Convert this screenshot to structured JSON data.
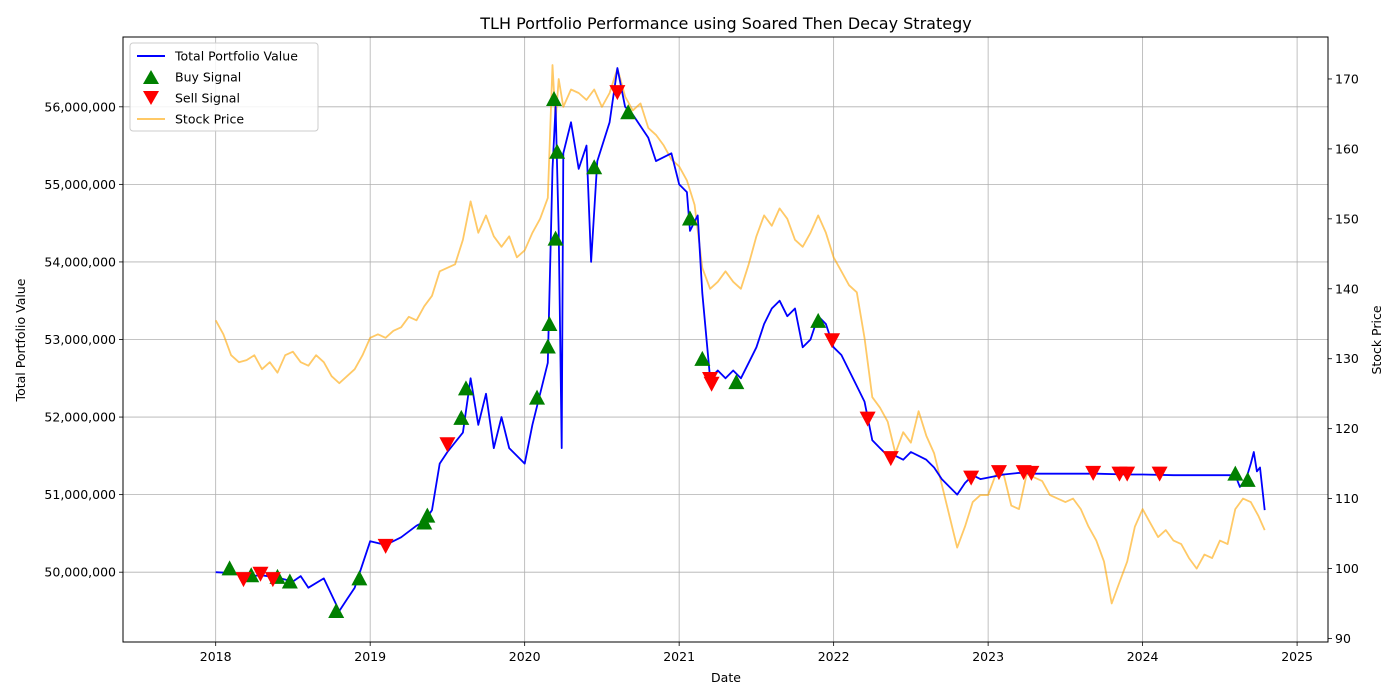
{
  "chart_data": {
    "type": "line",
    "title": "TLH Portfolio Performance using Soared Then Decay Strategy",
    "xlabel": "Date",
    "ylabel": "Total Portfolio Value",
    "y2label": "Stock Price",
    "grid": true,
    "legend_position": "top-left",
    "xlim": [
      2017.4,
      2025.2
    ],
    "ylim": [
      49100000,
      56900000
    ],
    "y2lim": [
      89.5,
      176
    ],
    "x_ticks": [
      "2018",
      "2019",
      "2020",
      "2021",
      "2022",
      "2023",
      "2024",
      "2025"
    ],
    "y_ticks": [
      "50,000,000",
      "51,000,000",
      "52,000,000",
      "53,000,000",
      "54,000,000",
      "55,000,000",
      "56,000,000"
    ],
    "y2_ticks": [
      "90",
      "100",
      "110",
      "120",
      "130",
      "140",
      "150",
      "160",
      "170"
    ],
    "legend": [
      "Total Portfolio Value",
      "Buy Signal",
      "Sell Signal",
      "Stock Price"
    ],
    "colors": {
      "portfolio": "#0000ff",
      "buy": "#008000",
      "sell": "#ff0000",
      "stock": "#ffa500"
    },
    "series": [
      {
        "name": "Total Portfolio Value",
        "axis": "left",
        "points": [
          [
            2018.0,
            50000000
          ],
          [
            2018.1,
            49990000
          ],
          [
            2018.2,
            49950000
          ],
          [
            2018.3,
            49960000
          ],
          [
            2018.4,
            49930000
          ],
          [
            2018.5,
            49880000
          ],
          [
            2018.55,
            49950000
          ],
          [
            2018.6,
            49800000
          ],
          [
            2018.7,
            49920000
          ],
          [
            2018.8,
            49500000
          ],
          [
            2018.85,
            49650000
          ],
          [
            2018.9,
            49800000
          ],
          [
            2019.0,
            50400000
          ],
          [
            2019.1,
            50350000
          ],
          [
            2019.2,
            50450000
          ],
          [
            2019.3,
            50600000
          ],
          [
            2019.35,
            50650000
          ],
          [
            2019.4,
            50800000
          ],
          [
            2019.45,
            51400000
          ],
          [
            2019.5,
            51550000
          ],
          [
            2019.6,
            51800000
          ],
          [
            2019.65,
            52500000
          ],
          [
            2019.7,
            51900000
          ],
          [
            2019.75,
            52300000
          ],
          [
            2019.8,
            51600000
          ],
          [
            2019.85,
            52000000
          ],
          [
            2019.9,
            51600000
          ],
          [
            2020.0,
            51400000
          ],
          [
            2020.05,
            51900000
          ],
          [
            2020.1,
            52300000
          ],
          [
            2020.15,
            52700000
          ],
          [
            2020.18,
            55200000
          ],
          [
            2020.2,
            56000000
          ],
          [
            2020.22,
            54400000
          ],
          [
            2020.24,
            51600000
          ],
          [
            2020.25,
            55400000
          ],
          [
            2020.3,
            55800000
          ],
          [
            2020.35,
            55200000
          ],
          [
            2020.4,
            55500000
          ],
          [
            2020.43,
            54000000
          ],
          [
            2020.47,
            55300000
          ],
          [
            2020.55,
            55800000
          ],
          [
            2020.6,
            56500000
          ],
          [
            2020.65,
            56000000
          ],
          [
            2020.7,
            55900000
          ],
          [
            2020.8,
            55600000
          ],
          [
            2020.85,
            55300000
          ],
          [
            2020.95,
            55400000
          ],
          [
            2021.0,
            55000000
          ],
          [
            2021.05,
            54900000
          ],
          [
            2021.07,
            54400000
          ],
          [
            2021.12,
            54600000
          ],
          [
            2021.15,
            53600000
          ],
          [
            2021.2,
            52500000
          ],
          [
            2021.25,
            52600000
          ],
          [
            2021.3,
            52500000
          ],
          [
            2021.35,
            52600000
          ],
          [
            2021.4,
            52500000
          ],
          [
            2021.45,
            52700000
          ],
          [
            2021.5,
            52900000
          ],
          [
            2021.55,
            53200000
          ],
          [
            2021.6,
            53400000
          ],
          [
            2021.65,
            53500000
          ],
          [
            2021.7,
            53300000
          ],
          [
            2021.75,
            53400000
          ],
          [
            2021.8,
            52900000
          ],
          [
            2021.85,
            53000000
          ],
          [
            2021.9,
            53300000
          ],
          [
            2021.95,
            53200000
          ],
          [
            2022.0,
            52900000
          ],
          [
            2022.05,
            52800000
          ],
          [
            2022.1,
            52600000
          ],
          [
            2022.15,
            52400000
          ],
          [
            2022.2,
            52200000
          ],
          [
            2022.25,
            51700000
          ],
          [
            2022.3,
            51600000
          ],
          [
            2022.35,
            51500000
          ],
          [
            2022.4,
            51500000
          ],
          [
            2022.45,
            51450000
          ],
          [
            2022.5,
            51550000
          ],
          [
            2022.55,
            51500000
          ],
          [
            2022.6,
            51450000
          ],
          [
            2022.65,
            51350000
          ],
          [
            2022.7,
            51200000
          ],
          [
            2022.75,
            51100000
          ],
          [
            2022.8,
            51000000
          ],
          [
            2022.85,
            51150000
          ],
          [
            2022.9,
            51250000
          ],
          [
            2022.95,
            51200000
          ],
          [
            2023.0,
            51220000
          ],
          [
            2023.1,
            51260000
          ],
          [
            2023.2,
            51280000
          ],
          [
            2023.3,
            51270000
          ],
          [
            2023.5,
            51270000
          ],
          [
            2023.7,
            51270000
          ],
          [
            2023.9,
            51260000
          ],
          [
            2024.0,
            51260000
          ],
          [
            2024.2,
            51250000
          ],
          [
            2024.4,
            51250000
          ],
          [
            2024.55,
            51250000
          ],
          [
            2024.6,
            51250000
          ],
          [
            2024.63,
            51100000
          ],
          [
            2024.67,
            51200000
          ],
          [
            2024.7,
            51400000
          ],
          [
            2024.72,
            51550000
          ],
          [
            2024.74,
            51300000
          ],
          [
            2024.76,
            51350000
          ],
          [
            2024.79,
            50800000
          ]
        ]
      },
      {
        "name": "Stock Price",
        "axis": "right",
        "points": [
          [
            2018.0,
            135.5
          ],
          [
            2018.05,
            133.5
          ],
          [
            2018.1,
            130.5
          ],
          [
            2018.15,
            129.5
          ],
          [
            2018.2,
            129.8
          ],
          [
            2018.25,
            130.5
          ],
          [
            2018.3,
            128.5
          ],
          [
            2018.35,
            129.5
          ],
          [
            2018.4,
            128.0
          ],
          [
            2018.45,
            130.5
          ],
          [
            2018.5,
            131.0
          ],
          [
            2018.55,
            129.5
          ],
          [
            2018.6,
            129.0
          ],
          [
            2018.65,
            130.5
          ],
          [
            2018.7,
            129.5
          ],
          [
            2018.75,
            127.5
          ],
          [
            2018.8,
            126.5
          ],
          [
            2018.85,
            127.5
          ],
          [
            2018.9,
            128.5
          ],
          [
            2018.95,
            130.5
          ],
          [
            2019.0,
            133.0
          ],
          [
            2019.05,
            133.5
          ],
          [
            2019.1,
            133.0
          ],
          [
            2019.15,
            134.0
          ],
          [
            2019.2,
            134.5
          ],
          [
            2019.25,
            136.0
          ],
          [
            2019.3,
            135.5
          ],
          [
            2019.35,
            137.5
          ],
          [
            2019.4,
            139.0
          ],
          [
            2019.45,
            142.5
          ],
          [
            2019.5,
            143.0
          ],
          [
            2019.55,
            143.5
          ],
          [
            2019.6,
            147.0
          ],
          [
            2019.65,
            152.5
          ],
          [
            2019.7,
            148.0
          ],
          [
            2019.75,
            150.5
          ],
          [
            2019.8,
            147.5
          ],
          [
            2019.85,
            146.0
          ],
          [
            2019.9,
            147.5
          ],
          [
            2019.95,
            144.5
          ],
          [
            2020.0,
            145.5
          ],
          [
            2020.05,
            148.0
          ],
          [
            2020.1,
            150.0
          ],
          [
            2020.15,
            153.0
          ],
          [
            2020.18,
            172.0
          ],
          [
            2020.2,
            164.0
          ],
          [
            2020.22,
            170.0
          ],
          [
            2020.25,
            166.0
          ],
          [
            2020.3,
            168.5
          ],
          [
            2020.35,
            168.0
          ],
          [
            2020.4,
            167.0
          ],
          [
            2020.45,
            168.5
          ],
          [
            2020.5,
            166.0
          ],
          [
            2020.55,
            168.0
          ],
          [
            2020.6,
            171.5
          ],
          [
            2020.62,
            170.0
          ],
          [
            2020.65,
            167.5
          ],
          [
            2020.7,
            165.5
          ],
          [
            2020.75,
            166.5
          ],
          [
            2020.8,
            163.0
          ],
          [
            2020.85,
            162.0
          ],
          [
            2020.9,
            160.5
          ],
          [
            2020.95,
            158.5
          ],
          [
            2021.0,
            157.5
          ],
          [
            2021.05,
            155.5
          ],
          [
            2021.1,
            152.0
          ],
          [
            2021.15,
            143.0
          ],
          [
            2021.2,
            140.0
          ],
          [
            2021.25,
            141.0
          ],
          [
            2021.3,
            142.5
          ],
          [
            2021.35,
            141.0
          ],
          [
            2021.4,
            140.0
          ],
          [
            2021.45,
            143.5
          ],
          [
            2021.5,
            147.5
          ],
          [
            2021.55,
            150.5
          ],
          [
            2021.6,
            149.0
          ],
          [
            2021.65,
            151.5
          ],
          [
            2021.7,
            150.0
          ],
          [
            2021.75,
            147.0
          ],
          [
            2021.8,
            146.0
          ],
          [
            2021.85,
            148.0
          ],
          [
            2021.9,
            150.5
          ],
          [
            2021.95,
            148.0
          ],
          [
            2022.0,
            144.5
          ],
          [
            2022.05,
            142.5
          ],
          [
            2022.1,
            140.5
          ],
          [
            2022.15,
            139.5
          ],
          [
            2022.2,
            133.0
          ],
          [
            2022.25,
            124.5
          ],
          [
            2022.3,
            123.0
          ],
          [
            2022.35,
            121.0
          ],
          [
            2022.4,
            116.5
          ],
          [
            2022.45,
            119.5
          ],
          [
            2022.5,
            118.0
          ],
          [
            2022.55,
            122.5
          ],
          [
            2022.6,
            119.0
          ],
          [
            2022.65,
            116.5
          ],
          [
            2022.7,
            112.0
          ],
          [
            2022.75,
            107.5
          ],
          [
            2022.8,
            103.0
          ],
          [
            2022.85,
            106.0
          ],
          [
            2022.9,
            109.5
          ],
          [
            2022.95,
            110.5
          ],
          [
            2023.0,
            110.5
          ],
          [
            2023.05,
            113.5
          ],
          [
            2023.1,
            113.5
          ],
          [
            2023.15,
            109.0
          ],
          [
            2023.2,
            108.5
          ],
          [
            2023.25,
            113.5
          ],
          [
            2023.3,
            113.0
          ],
          [
            2023.35,
            112.5
          ],
          [
            2023.4,
            110.5
          ],
          [
            2023.45,
            110.0
          ],
          [
            2023.5,
            109.5
          ],
          [
            2023.55,
            110.0
          ],
          [
            2023.6,
            108.5
          ],
          [
            2023.65,
            106.0
          ],
          [
            2023.7,
            104.0
          ],
          [
            2023.75,
            101.0
          ],
          [
            2023.8,
            95.0
          ],
          [
            2023.85,
            98.0
          ],
          [
            2023.9,
            101.0
          ],
          [
            2023.95,
            106.0
          ],
          [
            2024.0,
            108.5
          ],
          [
            2024.05,
            106.5
          ],
          [
            2024.1,
            104.5
          ],
          [
            2024.15,
            105.5
          ],
          [
            2024.2,
            104.0
          ],
          [
            2024.25,
            103.5
          ],
          [
            2024.3,
            101.5
          ],
          [
            2024.35,
            100.0
          ],
          [
            2024.4,
            102.0
          ],
          [
            2024.45,
            101.5
          ],
          [
            2024.5,
            104.0
          ],
          [
            2024.55,
            103.5
          ],
          [
            2024.6,
            108.5
          ],
          [
            2024.65,
            110.0
          ],
          [
            2024.7,
            109.5
          ],
          [
            2024.75,
            107.5
          ],
          [
            2024.79,
            105.5
          ]
        ]
      }
    ],
    "buy_signals": [
      [
        2018.09,
        50050000
      ],
      [
        2018.23,
        49960000
      ],
      [
        2018.4,
        49940000
      ],
      [
        2018.48,
        49880000
      ],
      [
        2018.78,
        49500000
      ],
      [
        2018.93,
        49920000
      ],
      [
        2019.35,
        50640000
      ],
      [
        2019.37,
        50730000
      ],
      [
        2019.59,
        51990000
      ],
      [
        2019.62,
        52370000
      ],
      [
        2020.08,
        52250000
      ],
      [
        2020.15,
        52910000
      ],
      [
        2020.16,
        53200000
      ],
      [
        2020.19,
        56100000
      ],
      [
        2020.2,
        54300000
      ],
      [
        2020.21,
        55420000
      ],
      [
        2020.45,
        55220000
      ],
      [
        2020.67,
        55930000
      ],
      [
        2021.07,
        54560000
      ],
      [
        2021.15,
        52750000
      ],
      [
        2021.37,
        52450000
      ],
      [
        2021.9,
        53240000
      ],
      [
        2024.6,
        51270000
      ],
      [
        2024.68,
        51190000
      ]
    ],
    "sell_signals": [
      [
        2018.18,
        49910000
      ],
      [
        2018.29,
        49980000
      ],
      [
        2018.37,
        49910000
      ],
      [
        2019.1,
        50340000
      ],
      [
        2019.5,
        51650000
      ],
      [
        2020.6,
        56190000
      ],
      [
        2021.2,
        52490000
      ],
      [
        2021.21,
        52430000
      ],
      [
        2021.99,
        52990000
      ],
      [
        2022.22,
        51980000
      ],
      [
        2022.37,
        51470000
      ],
      [
        2022.89,
        51220000
      ],
      [
        2023.07,
        51290000
      ],
      [
        2023.23,
        51290000
      ],
      [
        2023.28,
        51280000
      ],
      [
        2023.68,
        51280000
      ],
      [
        2023.85,
        51270000
      ],
      [
        2023.9,
        51270000
      ],
      [
        2024.11,
        51270000
      ]
    ]
  }
}
